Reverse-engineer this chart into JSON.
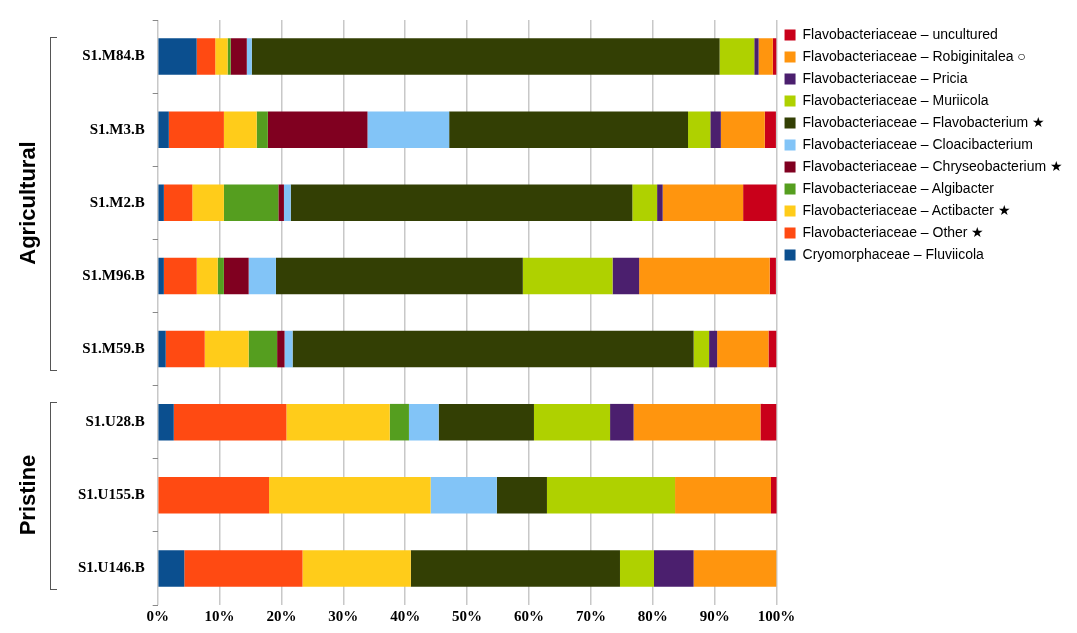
{
  "chart_data": {
    "type": "bar",
    "orientation": "horizontal",
    "stacked": true,
    "categories": [
      "S1.M84.B",
      "S1.M3.B",
      "S1.M2.B",
      "S1.M96.B",
      "S1.M59.B",
      "S1.U28.B",
      "S1.U155.B",
      "S1.U146.B"
    ],
    "series": [
      {
        "name": "Cryomorphaceae – Fluviicola",
        "color": "#0b4f8f",
        "values": [
          6.3,
          1.8,
          1.0,
          1.0,
          1.3,
          2.6,
          0,
          4.3
        ]
      },
      {
        "name": "Flavobacteriaceae – Other ★",
        "color": "#ff4a12",
        "values": [
          3.0,
          8.9,
          4.6,
          5.3,
          6.3,
          18.2,
          18.0,
          19.1
        ]
      },
      {
        "name": "Flavobacteriaceae – Actibacter ★",
        "color": "#ffcc1a",
        "values": [
          2.0,
          5.3,
          5.1,
          3.4,
          7.1,
          16.7,
          26.1,
          17.5
        ]
      },
      {
        "name": "Flavobacteriaceae – Algibacter",
        "color": "#559e1f",
        "values": [
          0.5,
          1.8,
          8.8,
          1.0,
          4.6,
          3.1,
          0,
          0
        ]
      },
      {
        "name": "Flavobacteriaceae – Chryseobacterium ★",
        "color": "#800020",
        "values": [
          2.6,
          16.1,
          0.9,
          4.0,
          1.2,
          0,
          0,
          0
        ]
      },
      {
        "name": "Flavobacteriaceae – Cloacibacterium",
        "color": "#82c4f7",
        "values": [
          0.8,
          13.2,
          1.1,
          4.4,
          1.3,
          4.8,
          10.7,
          0
        ]
      },
      {
        "name": "Flavobacteriaceae – Flavobacterium ★",
        "color": "#333f04",
        "values": [
          75.6,
          38.6,
          55.2,
          39.9,
          64.8,
          15.4,
          8.1,
          33.8
        ]
      },
      {
        "name": "Flavobacteriaceae – Muriicola",
        "color": "#afd100",
        "values": [
          5.6,
          3.6,
          4.0,
          14.5,
          2.5,
          12.3,
          20.7,
          5.5
        ]
      },
      {
        "name": "Flavobacteriaceae – Pricia",
        "color": "#4b1f6e",
        "values": [
          0.7,
          1.7,
          0.9,
          4.3,
          1.3,
          3.8,
          0,
          6.4
        ]
      },
      {
        "name": "Flavobacteriaceae – Robiginitalea ○",
        "color": "#ff950e",
        "values": [
          2.3,
          7.1,
          13.0,
          21.1,
          8.3,
          20.5,
          15.5,
          13.4
        ]
      },
      {
        "name": "Flavobacteriaceae – uncultured",
        "color": "#c9001a",
        "values": [
          0.6,
          1.8,
          5.5,
          1.0,
          1.3,
          2.6,
          1.0,
          0
        ]
      }
    ],
    "xlim": [
      0,
      100
    ],
    "xticks": [
      {
        "value": 0,
        "label": "0%"
      },
      {
        "value": 10,
        "label": "10%"
      },
      {
        "value": 20,
        "label": "20%"
      },
      {
        "value": 30,
        "label": "30%"
      },
      {
        "value": 40,
        "label": "40%"
      },
      {
        "value": 50,
        "label": "50%"
      },
      {
        "value": 60,
        "label": "60%"
      },
      {
        "value": 70,
        "label": "70%"
      },
      {
        "value": 80,
        "label": "80%"
      },
      {
        "value": 90,
        "label": "90%"
      },
      {
        "value": 100,
        "label": "100%"
      }
    ],
    "annotations": [
      "Agricultural",
      "Pristine"
    ],
    "grid": "x",
    "legend": "right"
  }
}
